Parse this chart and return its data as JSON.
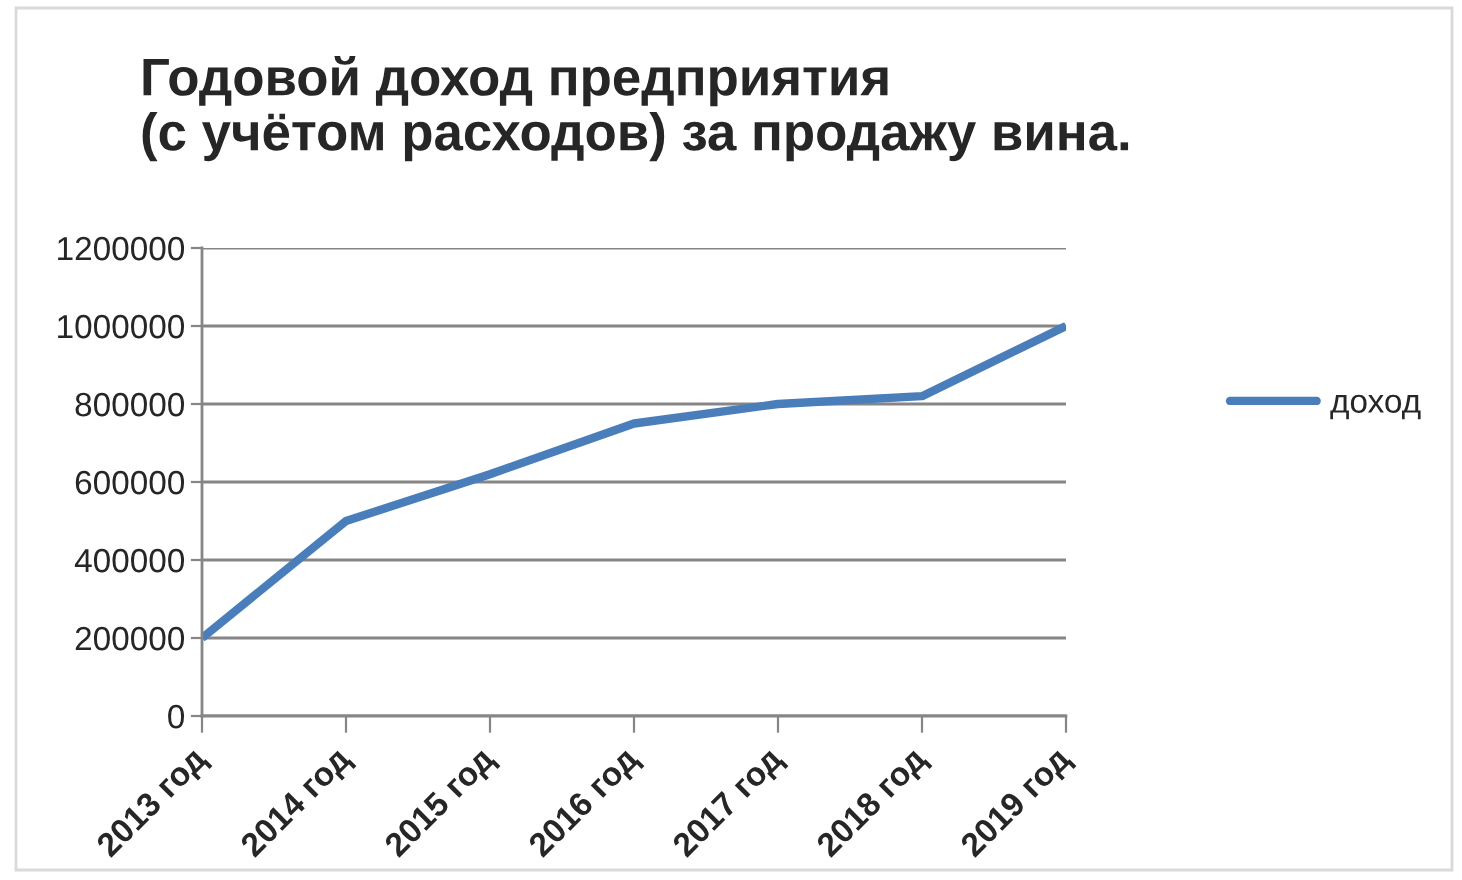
{
  "chart_data": {
    "type": "line",
    "title": "Годовой доход предприятия\n(с учётом расходов) за продажу вина.",
    "categories": [
      "2013 год",
      "2014 год",
      "2015 год",
      "2016 год",
      "2017 год",
      "2018 год",
      "2019 год"
    ],
    "series": [
      {
        "name": "доход",
        "color": "#4a7ebb",
        "values": [
          200000,
          500000,
          620000,
          750000,
          800000,
          820000,
          1000000
        ]
      }
    ],
    "ylim": [
      0,
      1200000
    ],
    "yticks": [
      0,
      200000,
      400000,
      600000,
      800000,
      1000000,
      1200000
    ],
    "grid": "y",
    "legend": "right",
    "line_style": "solid"
  }
}
